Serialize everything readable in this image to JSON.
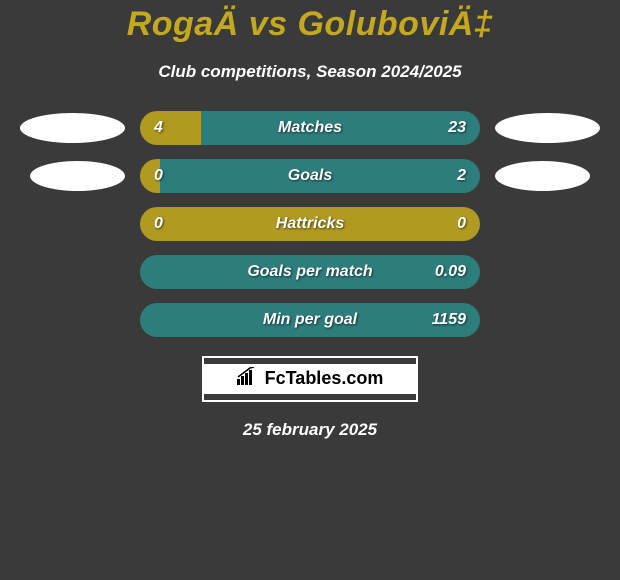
{
  "header": {
    "title": "RogaÄ vs GoluboviÄ‡",
    "subtitle": "Club competitions, Season 2024/2025"
  },
  "colors": {
    "left": "#b09a22",
    "right": "#2e7d7d",
    "background": "#3a3a3a",
    "ellipse": "#ffffff"
  },
  "stats": [
    {
      "label": "Matches",
      "left_value": "4",
      "right_value": "23",
      "left_pct": 18,
      "right_pct": 82,
      "show_ellipses": true
    },
    {
      "label": "Goals",
      "left_value": "0",
      "right_value": "2",
      "left_pct": 6,
      "right_pct": 94,
      "show_ellipses": true,
      "ellipse_narrow": true
    },
    {
      "label": "Hattricks",
      "left_value": "0",
      "right_value": "0",
      "left_pct": 100,
      "right_pct": 0,
      "show_ellipses": false
    },
    {
      "label": "Goals per match",
      "left_value": "",
      "right_value": "0.09",
      "left_pct": 0,
      "right_pct": 100,
      "show_ellipses": false
    },
    {
      "label": "Min per goal",
      "left_value": "",
      "right_value": "1159",
      "left_pct": 0,
      "right_pct": 100,
      "show_ellipses": false
    }
  ],
  "branding": {
    "text": "FcTables.com"
  },
  "date": "25 february 2025"
}
